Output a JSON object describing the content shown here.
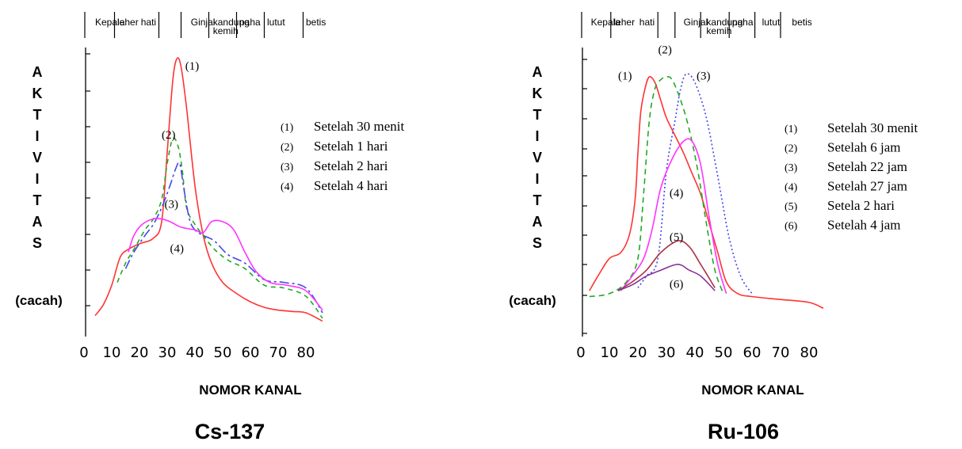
{
  "chart_data": [
    {
      "type": "line",
      "title": "Cs-137",
      "xlabel": "NOMOR KANAL",
      "ylabel_letters": [
        "A",
        "K",
        "T",
        "I",
        "V",
        "I",
        "T",
        "A",
        "S"
      ],
      "ylabel_unit": "(cacah)",
      "xlim": [
        0,
        90
      ],
      "ylim": [
        0,
        100
      ],
      "xticks": [
        0,
        10,
        20,
        30,
        40,
        50,
        60,
        70,
        80
      ],
      "regions": [
        {
          "label": "Kepala",
          "x": 4
        },
        {
          "label": "leher",
          "x": 12
        },
        {
          "label": "hati",
          "x": 20.5
        },
        {
          "label": "Ginjal",
          "x": 38.5
        },
        {
          "label": "kandung",
          "x": 46.5
        },
        {
          "label": "kemih",
          "x": 46.5
        },
        {
          "label": "paha",
          "x": 56
        },
        {
          "label": "lutut",
          "x": 66
        },
        {
          "label": "betis",
          "x": 80
        }
      ],
      "region_dividers": [
        11,
        27,
        35,
        45,
        55,
        65,
        79
      ],
      "legend": [
        {
          "num": "(1)",
          "text": "Setelah 30 menit"
        },
        {
          "num": "(2)",
          "text": "Setelah 1 hari"
        },
        {
          "num": "(3)",
          "text": "Setelah 2 hari"
        },
        {
          "num": "(4)",
          "text": "Setelah 4 hari"
        }
      ],
      "curve_labels": [
        {
          "text": "(1)",
          "x": 39,
          "y": 92
        },
        {
          "text": "(2)",
          "x": 30.5,
          "y": 67
        },
        {
          "text": "(3)",
          "x": 31.5,
          "y": 42
        },
        {
          "text": "(4)",
          "x": 33.5,
          "y": 26
        }
      ],
      "series": [
        {
          "id": "1",
          "color": "#ff3333",
          "dash": "none",
          "x": [
            4,
            7,
            10,
            13,
            16,
            20,
            25,
            28,
            30,
            32,
            33.5,
            35,
            37,
            40,
            43,
            46,
            50,
            55,
            60,
            65,
            70,
            75,
            80,
            86
          ],
          "y": [
            3,
            7,
            14,
            24,
            27,
            29,
            31,
            37,
            62,
            88,
            96,
            93,
            78,
            50,
            32,
            22,
            15,
            11,
            8,
            6,
            5,
            4.5,
            4,
            1
          ]
        },
        {
          "id": "2",
          "color": "#22aa22",
          "dash": "6,5",
          "x": [
            12,
            15,
            18,
            22,
            25,
            28,
            30,
            32,
            34,
            35.5,
            37,
            40,
            43,
            47,
            52,
            58,
            65,
            72,
            80,
            86
          ],
          "y": [
            15,
            22,
            27,
            34,
            38,
            45,
            58,
            67,
            64,
            55,
            42,
            36,
            32,
            27,
            23,
            20,
            14,
            13,
            10,
            2
          ]
        },
        {
          "id": "3",
          "color": "#4444ee",
          "dash": "12,4,3,4",
          "x": [
            15,
            18,
            22,
            25,
            28,
            31,
            33,
            34.5,
            36,
            38,
            40,
            43,
            47,
            52,
            58,
            65,
            72,
            80,
            86
          ],
          "y": [
            20,
            26,
            32,
            36,
            42,
            50,
            56,
            58,
            49,
            38,
            34,
            32,
            30,
            25,
            22,
            16,
            15,
            13,
            4
          ]
        },
        {
          "id": "4",
          "color": "#ff33ff",
          "dash": "none",
          "x": [
            16,
            18,
            21,
            25,
            28,
            31,
            35,
            40,
            43,
            46,
            50,
            54,
            58,
            62,
            67,
            73,
            80,
            86
          ],
          "y": [
            26,
            32,
            36,
            38,
            38,
            37,
            35,
            34,
            33,
            37,
            37,
            34,
            26,
            19,
            15,
            14,
            12,
            5
          ]
        }
      ]
    },
    {
      "type": "line",
      "title": "Ru-106",
      "xlabel": "NOMOR KANAL",
      "ylabel_letters": [
        "A",
        "K",
        "T",
        "I",
        "V",
        "I",
        "T",
        "A",
        "S"
      ],
      "ylabel_unit": "(cacah)",
      "xlim": [
        0,
        90
      ],
      "ylim": [
        0,
        100
      ],
      "xticks": [
        0,
        10,
        20,
        30,
        40,
        50,
        60,
        70,
        80
      ],
      "regions": [
        {
          "label": "Kepala",
          "x": 3.5
        },
        {
          "label": "leher",
          "x": 11.5
        },
        {
          "label": "hati",
          "x": 20.5
        },
        {
          "label": "Ginjal",
          "x": 36
        },
        {
          "label": "kandung",
          "x": 44
        },
        {
          "label": "kemih",
          "x": 44
        },
        {
          "label": "paha",
          "x": 53
        },
        {
          "label": "lutut",
          "x": 63.5
        },
        {
          "label": "betis",
          "x": 74
        }
      ],
      "region_dividers": [
        10.5,
        27,
        33,
        42,
        52,
        61,
        70
      ],
      "legend": [
        {
          "num": "(1)",
          "text": "Setelah 30 menit"
        },
        {
          "num": "(2)",
          "text": "Setelah 6 jam"
        },
        {
          "num": "(3)",
          "text": "Setelah 22 jam"
        },
        {
          "num": "(4)",
          "text": "Setelah 27 jam"
        },
        {
          "num": "(5)",
          "text": "Setela 2 hari"
        },
        {
          "num": "(6)",
          "text": "Setelah 4 jam"
        }
      ],
      "curve_labels": [
        {
          "text": "(1)",
          "x": 15.5,
          "y": 89
        },
        {
          "text": "(2)",
          "x": 29.5,
          "y": 98
        },
        {
          "text": "(3)",
          "x": 43,
          "y": 89
        },
        {
          "text": "(4)",
          "x": 33.5,
          "y": 49
        },
        {
          "text": "(5)",
          "x": 33.5,
          "y": 34
        },
        {
          "text": "(6)",
          "x": 33.5,
          "y": 18
        }
      ],
      "series": [
        {
          "id": "1",
          "color": "#ff3333",
          "dash": "none",
          "x": [
            3,
            6,
            10,
            14,
            17,
            19,
            20,
            21,
            22.5,
            24,
            26,
            28,
            30,
            33,
            36,
            39,
            42,
            45,
            48,
            51,
            55,
            60,
            70,
            80,
            85
          ],
          "y": [
            17,
            22,
            28,
            30,
            36,
            48,
            64,
            78,
            86,
            90,
            88,
            82,
            76,
            70,
            64,
            57,
            50,
            40,
            30,
            20,
            16,
            15,
            14,
            13,
            11
          ]
        },
        {
          "id": "2",
          "color": "#22aa22",
          "dash": "7,5",
          "x": [
            3,
            10,
            16,
            20,
            22,
            24,
            26,
            28,
            30,
            32,
            35,
            38,
            41,
            44,
            47,
            50
          ],
          "y": [
            15,
            16,
            20,
            28,
            50,
            75,
            86,
            89,
            90,
            89,
            82,
            72,
            58,
            40,
            24,
            16
          ]
        },
        {
          "id": "3",
          "color": "#4444ee",
          "dash": "2,3",
          "x": [
            20,
            23,
            27,
            30,
            33,
            35,
            37,
            40,
            44,
            48,
            52,
            56,
            60
          ],
          "y": [
            18,
            22,
            28,
            58,
            75,
            86,
            91,
            88,
            76,
            56,
            35,
            22,
            16
          ]
        },
        {
          "id": "4",
          "color": "#ff33ff",
          "dash": "none",
          "x": [
            14,
            18,
            22,
            25,
            28,
            32,
            36,
            39,
            42,
            45,
            48,
            51
          ],
          "y": [
            17,
            22,
            28,
            38,
            52,
            62,
            68,
            68,
            60,
            42,
            26,
            16
          ]
        },
        {
          "id": "5",
          "color": "#aa3344",
          "dash": "none",
          "x": [
            13,
            18,
            23,
            28,
            34,
            38,
            42,
            47
          ],
          "y": [
            17,
            20,
            24,
            30,
            34,
            32,
            26,
            18
          ]
        },
        {
          "id": "6",
          "color": "#883399",
          "dash": "none",
          "x": [
            13,
            18,
            23,
            28,
            34,
            38,
            42,
            47
          ],
          "y": [
            17,
            19,
            22,
            24,
            26,
            24,
            22,
            17
          ]
        }
      ]
    }
  ]
}
